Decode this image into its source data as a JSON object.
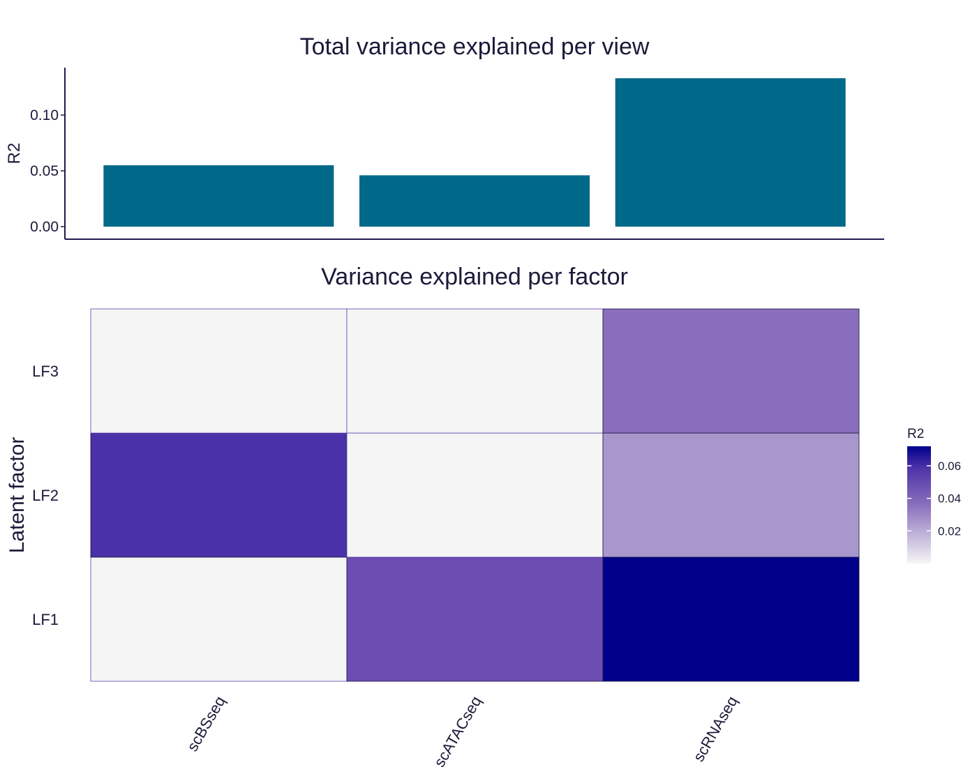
{
  "chart_data": [
    {
      "type": "bar",
      "title": "Total variance explained per view",
      "xlabel": "",
      "ylabel": "R2",
      "categories": [
        "scBSseq",
        "scATACseq",
        "scRNAseq"
      ],
      "values": [
        0.055,
        0.046,
        0.133
      ],
      "ylim": [
        0,
        0.144
      ],
      "yticks": [
        0.0,
        0.05,
        0.1
      ],
      "yticklabels": [
        "0.00",
        "0.05",
        "0.10"
      ],
      "grid": false,
      "legend": "none",
      "colors": {
        "bar": "#006888",
        "axis": "#1e1b4b"
      }
    },
    {
      "type": "heatmap",
      "title": "Variance explained per factor",
      "xlabel": "",
      "ylabel": "Latent factor",
      "x": [
        "scBSseq",
        "scATACseq",
        "scRNAseq"
      ],
      "y": [
        "LF1",
        "LF2",
        "LF3"
      ],
      "values": [
        [
          0.0,
          0.047,
          0.072
        ],
        [
          0.06,
          0.0,
          0.022
        ],
        [
          0.0,
          0.0,
          0.038
        ]
      ],
      "legend": {
        "title": "R2",
        "placement": "right",
        "range": [
          0.0,
          0.072
        ],
        "ticks": [
          0.02,
          0.04,
          0.06
        ],
        "ticklabels": [
          "0.02",
          "0.04",
          "0.06"
        ]
      },
      "colors": {
        "low": "#f5f5f5",
        "high": "#00008b",
        "border": "#5a3fb0"
      }
    }
  ]
}
